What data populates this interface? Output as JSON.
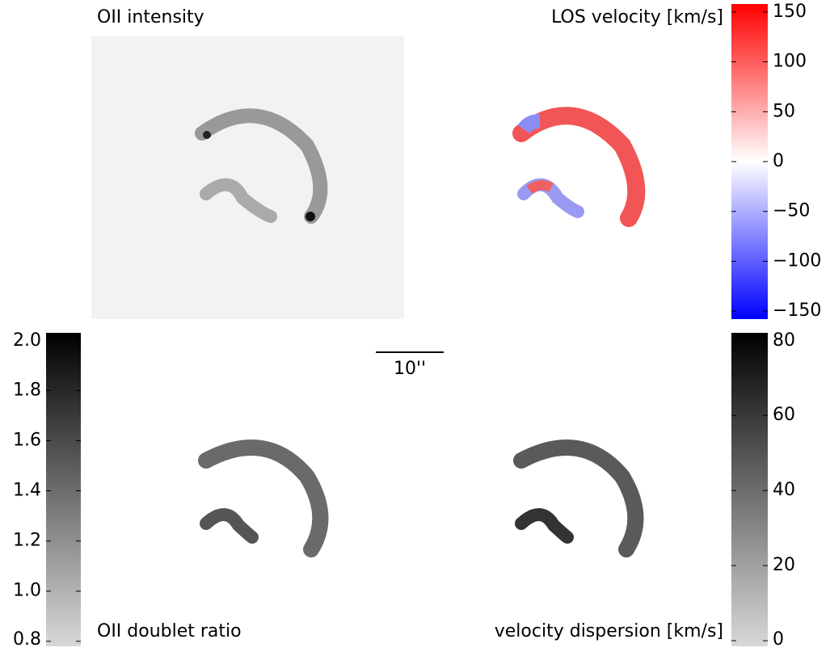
{
  "chart_data": [
    {
      "type": "image",
      "title": "OII intensity"
    },
    {
      "type": "image",
      "title": "LOS velocity [km/s]",
      "clim": [
        -158,
        158
      ],
      "cticks": [
        {
          "value": -150,
          "label": "−150"
        },
        {
          "value": -100,
          "label": "−100"
        },
        {
          "value": -50,
          "label": "−50"
        },
        0,
        50,
        100,
        150
      ]
    },
    {
      "type": "image",
      "title": "OII doublet ratio",
      "clim": [
        0.78,
        2.03
      ],
      "cticks": [
        0.8,
        {
          "value": 1,
          "label": "1.0"
        },
        1.2,
        1.4,
        1.6,
        1.8,
        {
          "value": 2,
          "label": "2.0"
        }
      ]
    },
    {
      "type": "image",
      "title": "velocity dispersion [km/s]",
      "clim": [
        -1.5,
        82
      ],
      "cticks": [
        0,
        20,
        40,
        60,
        80
      ]
    }
  ],
  "scale_bar": {
    "label": "10''"
  }
}
